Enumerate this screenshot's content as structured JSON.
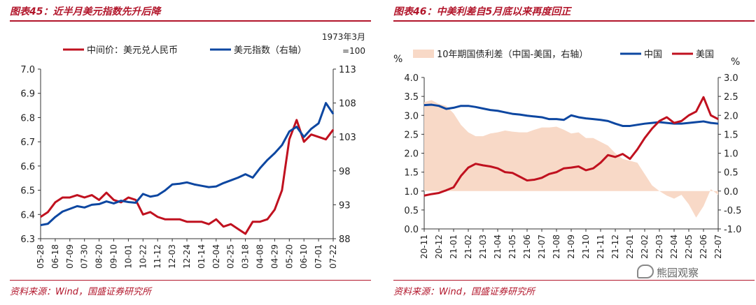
{
  "panels": {
    "left": {
      "title": "图表45：近半月美元指数先升后降",
      "source": "资料来源：Wind，国盛证券研究所"
    },
    "right": {
      "title": "图表46：中美利差自5月底以来再度回正",
      "source": "资料来源：Wind，国盛证券研究所"
    }
  },
  "watermark": {
    "text": "熊园观察",
    "icon": "wechat-icon"
  },
  "chart_data": [
    {
      "type": "line",
      "title": "",
      "y_left": {
        "ticks": [
          "6.3",
          "6.4",
          "6.5",
          "6.6",
          "6.7",
          "6.8",
          "6.9",
          "7.0"
        ],
        "range": [
          6.3,
          7.0
        ]
      },
      "y_right": {
        "ticks": [
          "88",
          "93",
          "98",
          "103",
          "108",
          "113"
        ],
        "range": [
          88,
          113
        ],
        "unit_note": "1973年3月 =100"
      },
      "x_ticks": [
        "05-28",
        "06-18",
        "07-09",
        "07-30",
        "08-20",
        "09-10",
        "10-01",
        "10-22",
        "11-12",
        "12-03",
        "12-24",
        "01-14",
        "02-04",
        "02-25",
        "03-18",
        "04-08",
        "04-29",
        "05-20",
        "06-10",
        "07-01",
        "07-22"
      ],
      "grid": false,
      "legend_position": "top",
      "colors": {
        "cny": "#c0111f",
        "dxy": "#0d47a1"
      },
      "series": [
        {
          "name": "中间价：美元兑人民币",
          "axis": "left",
          "color": "#c0111f",
          "x": [
            0,
            1,
            2,
            3,
            4,
            5,
            6,
            7,
            8,
            9,
            10,
            11,
            12,
            13,
            14,
            15,
            16,
            17,
            18,
            19,
            20,
            21,
            22,
            23,
            24,
            25,
            26,
            27,
            28,
            29,
            30,
            31,
            32,
            33,
            34,
            35,
            36,
            37,
            38,
            39,
            40
          ],
          "values": [
            6.39,
            6.41,
            6.45,
            6.47,
            6.47,
            6.48,
            6.47,
            6.48,
            6.46,
            6.49,
            6.46,
            6.45,
            6.47,
            6.46,
            6.4,
            6.41,
            6.39,
            6.38,
            6.38,
            6.38,
            6.37,
            6.37,
            6.37,
            6.36,
            6.38,
            6.35,
            6.36,
            6.34,
            6.32,
            6.37,
            6.37,
            6.38,
            6.42,
            6.5,
            6.71,
            6.79,
            6.7,
            6.73,
            6.72,
            6.71,
            6.75
          ]
        },
        {
          "name": "美元指数（右轴）",
          "axis": "right",
          "color": "#0d47a1",
          "x": [
            0,
            1,
            2,
            3,
            4,
            5,
            6,
            7,
            8,
            9,
            10,
            11,
            12,
            13,
            14,
            15,
            16,
            17,
            18,
            19,
            20,
            21,
            22,
            23,
            24,
            25,
            26,
            27,
            28,
            29,
            30,
            31,
            32,
            33,
            34,
            35,
            36,
            37,
            38,
            39,
            40
          ],
          "values": [
            90.0,
            90.2,
            91.2,
            92.0,
            92.4,
            92.8,
            92.6,
            93.0,
            93.1,
            93.5,
            93.2,
            93.6,
            93.4,
            93.3,
            94.6,
            94.2,
            94.4,
            95.1,
            96.0,
            96.1,
            96.3,
            96.0,
            95.8,
            95.6,
            95.7,
            96.2,
            96.6,
            97.0,
            97.5,
            97.0,
            98.4,
            99.6,
            100.6,
            101.8,
            103.8,
            104.5,
            103.0,
            104.2,
            105.0,
            108.0,
            106.4
          ]
        }
      ]
    },
    {
      "type": "line",
      "title": "",
      "y_left": {
        "label": "%",
        "ticks": [
          "0.0",
          "0.5",
          "1.0",
          "1.5",
          "2.0",
          "2.5",
          "3.0",
          "3.5",
          "4.0"
        ],
        "range": [
          0.0,
          4.0
        ]
      },
      "y_right": {
        "label": "%",
        "ticks": [
          "-1.0",
          "-0.5",
          "0.0",
          "0.5",
          "1.0",
          "1.5",
          "2.0",
          "2.5",
          "3.0"
        ],
        "range": [
          -1.0,
          3.0
        ]
      },
      "x_ticks": [
        "20-11",
        "20-12",
        "21-01",
        "21-02",
        "21-03",
        "21-04",
        "21-05",
        "21-06",
        "21-07",
        "21-08",
        "21-09",
        "21-10",
        "21-11",
        "21-12",
        "22-01",
        "22-02",
        "22-03",
        "22-04",
        "22-05",
        "22-06",
        "22-07"
      ],
      "grid": false,
      "legend_position": "top",
      "colors": {
        "spread": "#f8d9c7",
        "china": "#0d47a1",
        "us": "#c0111f"
      },
      "series": [
        {
          "name": "10年期国债利差（中国-美国，右轴）",
          "axis": "right",
          "type": "area",
          "color": "#f8d9c7",
          "x": [
            0,
            0.5,
            1,
            1.5,
            2,
            2.5,
            3,
            3.5,
            4,
            4.5,
            5,
            5.5,
            6,
            6.5,
            7,
            7.5,
            8,
            8.5,
            9,
            9.5,
            10,
            10.5,
            11,
            11.5,
            12,
            12.5,
            13,
            13.5,
            14,
            14.5,
            15,
            15.5,
            16,
            16.5,
            17,
            17.5,
            18,
            18.5,
            19,
            19.5,
            20
          ],
          "values": [
            2.35,
            2.4,
            2.3,
            2.25,
            2.05,
            1.75,
            1.55,
            1.45,
            1.45,
            1.52,
            1.55,
            1.6,
            1.57,
            1.55,
            1.55,
            1.62,
            1.68,
            1.68,
            1.7,
            1.62,
            1.52,
            1.55,
            1.4,
            1.4,
            1.3,
            1.2,
            1.0,
            0.85,
            0.8,
            0.75,
            0.45,
            0.15,
            0.0,
            -0.12,
            -0.2,
            -0.1,
            -0.35,
            -0.7,
            -0.4,
            0.05,
            -0.1
          ]
        },
        {
          "name": "中国",
          "axis": "left",
          "color": "#0d47a1",
          "x": [
            0,
            0.5,
            1,
            1.5,
            2,
            2.5,
            3,
            3.5,
            4,
            4.5,
            5,
            5.5,
            6,
            6.5,
            7,
            7.5,
            8,
            8.5,
            9,
            9.5,
            10,
            10.5,
            11,
            11.5,
            12,
            12.5,
            13,
            13.5,
            14,
            14.5,
            15,
            15.5,
            16,
            16.5,
            17,
            17.5,
            18,
            18.5,
            19,
            19.5,
            20
          ],
          "values": [
            3.27,
            3.28,
            3.25,
            3.17,
            3.2,
            3.25,
            3.25,
            3.22,
            3.18,
            3.14,
            3.12,
            3.08,
            3.04,
            3.02,
            2.99,
            2.97,
            2.95,
            2.9,
            2.9,
            2.88,
            3.0,
            2.95,
            2.92,
            2.9,
            2.88,
            2.85,
            2.78,
            2.72,
            2.72,
            2.75,
            2.78,
            2.8,
            2.82,
            2.8,
            2.78,
            2.78,
            2.8,
            2.82,
            2.84,
            2.8,
            2.78
          ]
        },
        {
          "name": "美国",
          "axis": "left",
          "color": "#c0111f",
          "x": [
            0,
            0.5,
            1,
            1.5,
            2,
            2.5,
            3,
            3.5,
            4,
            4.5,
            5,
            5.5,
            6,
            6.5,
            7,
            7.5,
            8,
            8.5,
            9,
            9.5,
            10,
            10.5,
            11,
            11.5,
            12,
            12.5,
            13,
            13.5,
            14,
            14.5,
            15,
            15.5,
            16,
            16.5,
            17,
            17.5,
            18,
            18.5,
            19,
            19.5,
            20
          ],
          "values": [
            0.88,
            0.92,
            0.95,
            1.02,
            1.1,
            1.4,
            1.62,
            1.72,
            1.68,
            1.65,
            1.6,
            1.5,
            1.48,
            1.38,
            1.28,
            1.3,
            1.35,
            1.45,
            1.5,
            1.6,
            1.62,
            1.65,
            1.55,
            1.6,
            1.75,
            1.95,
            1.9,
            1.98,
            1.85,
            2.1,
            2.4,
            2.65,
            2.85,
            2.95,
            2.8,
            2.85,
            3.0,
            3.1,
            3.48,
            3.0,
            2.9
          ]
        }
      ]
    }
  ]
}
